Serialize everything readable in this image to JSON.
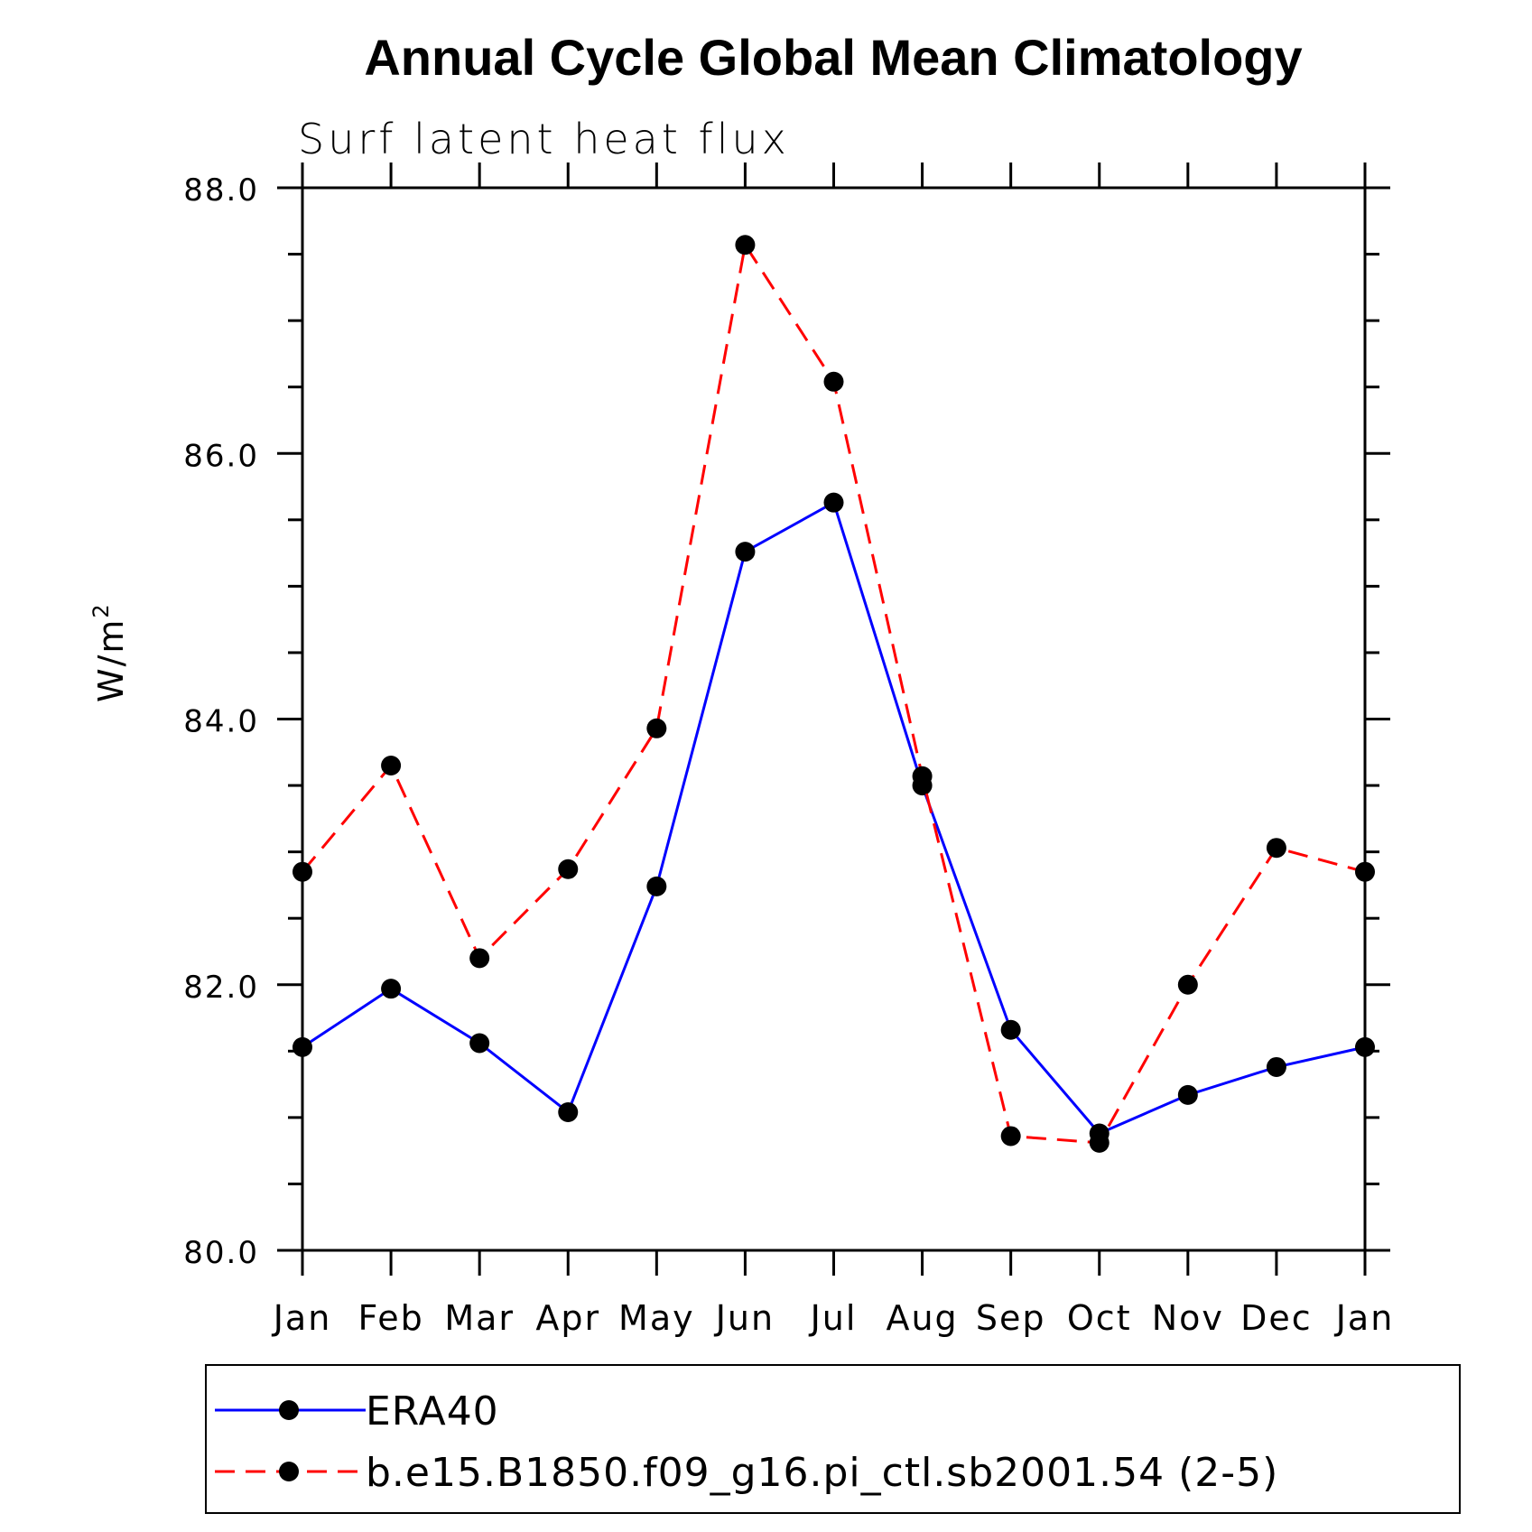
{
  "chart_data": {
    "type": "line",
    "title": "Annual Cycle Global Mean Climatology",
    "subtitle": "Surf latent heat flux",
    "ylabel": "W/m",
    "ylabel_superscript": "2",
    "xlabel": "",
    "categories": [
      "Jan",
      "Feb",
      "Mar",
      "Apr",
      "May",
      "Jun",
      "Jul",
      "Aug",
      "Sep",
      "Oct",
      "Nov",
      "Dec",
      "Jan"
    ],
    "ylim": [
      80.0,
      88.0
    ],
    "yticks": [
      "80.0",
      "82.0",
      "84.0",
      "86.0",
      "88.0"
    ],
    "grid": false,
    "legend_position": "bottom",
    "series": [
      {
        "name": "ERA40",
        "color": "#0000ff",
        "dash": "solid",
        "values": [
          81.53,
          81.97,
          81.56,
          81.04,
          82.74,
          85.26,
          85.63,
          83.5,
          81.66,
          80.88,
          81.17,
          81.38,
          81.53
        ]
      },
      {
        "name": "b.e15.B1850.f09_g16.pi_ctl.sb2001.54 (2-5)",
        "color": "#ff0000",
        "dash": "dashed",
        "values": [
          82.85,
          83.65,
          82.2,
          82.87,
          83.93,
          87.57,
          86.54,
          83.57,
          80.86,
          80.81,
          82.0,
          83.03,
          82.85
        ]
      }
    ]
  }
}
